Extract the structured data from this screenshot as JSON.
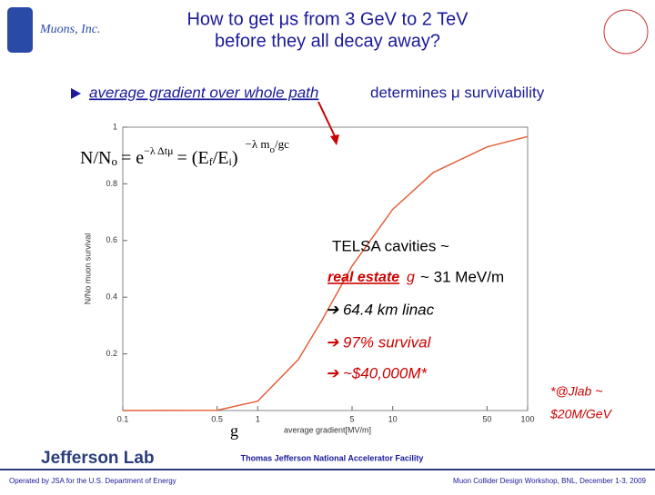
{
  "slide": {
    "logo": "Muons, Inc.",
    "title_lines": [
      "How to get μs from 3 GeV to 2 TeV",
      "before they all decay away?"
    ],
    "bullet": {
      "underlined": "average gradient over whole path",
      "rest": "determines μ survivability"
    },
    "formula": [
      "N/N",
      "o",
      "= e",
      "−λ Δtμ",
      "= (E",
      "f",
      "/E",
      "i",
      ")",
      "−λ m",
      "o",
      "/gc"
    ],
    "notes": [
      "TELSA cavities ~",
      "real estate",
      "g",
      "~ 31 MeV/m",
      "➔ 64.4 km linac",
      "➔ 97% survival",
      "➔ ~$40,000M*"
    ],
    "footnote": [
      "*@Jlab ~",
      "$20M/GeV"
    ],
    "axis_symbol": "g",
    "footer": {
      "lab": "Jefferson Lab",
      "facility": "Thomas Jefferson National Accelerator Facility",
      "operated": "Operated by JSA for the U.S. Department of Energy",
      "workshop": "Muon Collider Design Workshop, BNL, December 1-3, 2009"
    }
  },
  "chart_data": {
    "type": "line",
    "x_label": "average gradient[MV/m]",
    "y_label": "N/No muon survival",
    "x": [
      0.1,
      0.5,
      1,
      2,
      3,
      5,
      10,
      20,
      50,
      100
    ],
    "series": [
      {
        "color": "#e4603c",
        "values": [
          0,
          0.001,
          0.033,
          0.18,
          0.32,
          0.51,
          0.71,
          0.84,
          0.93,
          0.967
        ]
      }
    ],
    "xlim": [
      0.1,
      100
    ],
    "ylim": [
      0,
      1
    ],
    "xlog": true,
    "xticks": [
      0.1,
      0.5,
      1,
      5,
      10,
      50,
      100
    ],
    "yticks": [
      0.2,
      0.4,
      0.6,
      0.8,
      1
    ]
  }
}
